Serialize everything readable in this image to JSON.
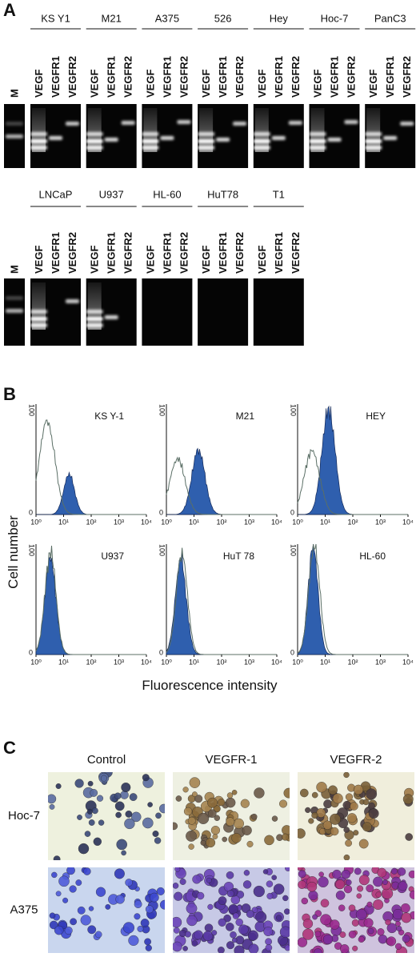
{
  "panels": {
    "A": {
      "label": "A",
      "marker": "M",
      "lanes": [
        "VEGF",
        "VEGFR1",
        "VEGFR2"
      ],
      "row1": [
        "KS Y1",
        "M21",
        "A375",
        "526",
        "Hey",
        "Hoc-7",
        "PanC3"
      ],
      "row2": [
        "LNCaP",
        "U937",
        "HL-60",
        "HuT78",
        "T1"
      ]
    },
    "B": {
      "label": "B",
      "y_axis_label": "Cell number",
      "x_axis_label": "Fluorescence intensity",
      "y_ticks": [
        "100",
        "0"
      ],
      "x_ticks": [
        "10⁰",
        "10¹",
        "10²",
        "10³",
        "10⁴"
      ],
      "plots": [
        "KS Y-1",
        "M21",
        "HEY",
        "U937",
        "HuT 78",
        "HL-60"
      ]
    },
    "C": {
      "label": "C",
      "columns": [
        "Control",
        "VEGFR-1",
        "VEGFR-2"
      ],
      "rows": [
        "Hoc-7",
        "A375"
      ]
    }
  }
}
